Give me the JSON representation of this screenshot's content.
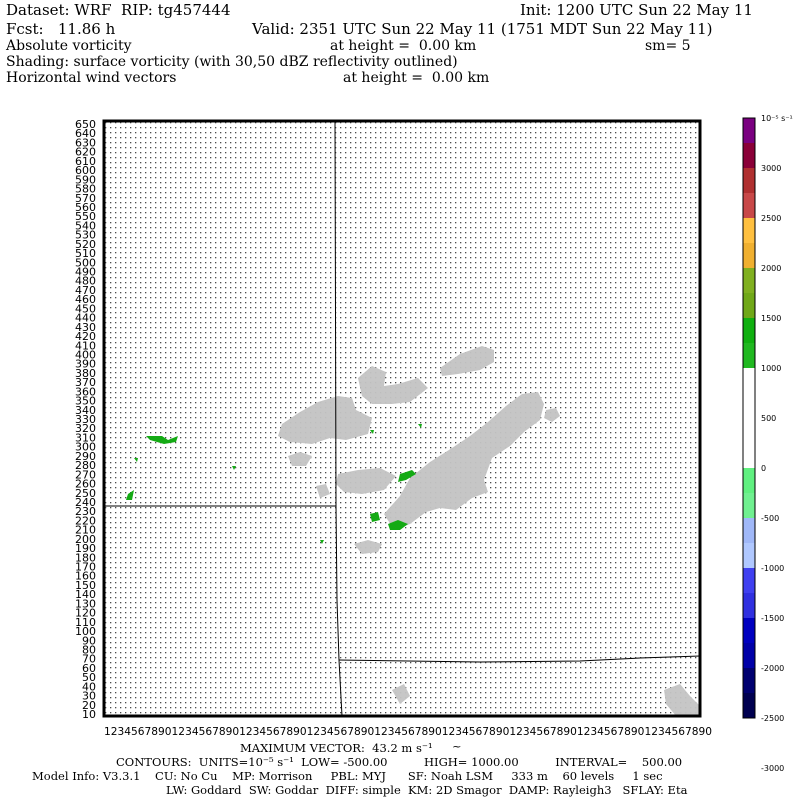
{
  "header": {
    "dataset": "Dataset: WRF  RIP: tg457444",
    "init": "Init: 1200 UTC Sun 22 May 11",
    "fcst": "Fcst:   11.86 h",
    "valid": "Valid: 2351 UTC Sun 22 May 11 (1751 MDT Sun 22 May 11)",
    "field_name": "Absolute vorticity",
    "field_height": "at height =  0.00 km",
    "smoothing": "sm= 5",
    "shading": "Shading: surface vorticity (with 30,50 dBZ reflectivity outlined)",
    "vector_name": "Horizontal wind vectors",
    "vector_height": "at height =  0.00 km"
  },
  "y_axis_ticks": [
    "650",
    "640",
    "630",
    "620",
    "610",
    "600",
    "590",
    "580",
    "570",
    "560",
    "550",
    "540",
    "530",
    "520",
    "510",
    "500",
    "490",
    "480",
    "470",
    "460",
    "450",
    "440",
    "430",
    "420",
    "410",
    "400",
    "390",
    "380",
    "370",
    "360",
    "350",
    "340",
    "330",
    "320",
    "310",
    "300",
    "290",
    "280",
    "270",
    "260",
    "250",
    "240",
    "230",
    "220",
    "210",
    "200",
    "190",
    "180",
    "170",
    "160",
    "150",
    "140",
    "130",
    "120",
    "110",
    "100",
    "90",
    "80",
    "70",
    "60",
    "50",
    "40",
    "30",
    "20",
    "10"
  ],
  "x_axis_label_text": "123456789012345678901234567890123456789012345678901234567890123456789012345678901234567890",
  "colorbar": {
    "unit": "10⁻⁵ s⁻¹",
    "bands": [
      {
        "color": "#7a0080"
      },
      {
        "color": "#8a0038"
      },
      {
        "color": "#b03030"
      },
      {
        "color": "#c84848"
      },
      {
        "color": "#ffc040"
      },
      {
        "color": "#f0b030"
      },
      {
        "color": "#80b020"
      },
      {
        "color": "#70a818"
      },
      {
        "color": "#10b010"
      },
      {
        "color": "#20b820"
      },
      {
        "color": "#ffffff"
      },
      {
        "color": "#ffffff"
      },
      {
        "color": "#ffffff"
      },
      {
        "color": "#ffffff"
      },
      {
        "color": "#60f080"
      },
      {
        "color": "#70f090"
      },
      {
        "color": "#a0b8f8"
      },
      {
        "color": "#b0c8ff"
      },
      {
        "color": "#4040f0"
      },
      {
        "color": "#3030e0"
      },
      {
        "color": "#0000c0"
      },
      {
        "color": "#0000a8"
      },
      {
        "color": "#000070"
      },
      {
        "color": "#000050"
      }
    ],
    "labels": [
      "3000",
      "2500",
      "2000",
      "1500",
      "1000",
      "500",
      "0",
      "-500",
      "-1000",
      "-1500",
      "-2000",
      "-2500",
      "-3000"
    ]
  },
  "footer": {
    "max_vector": "MAXIMUM VECTOR:  43.2 m s⁻¹",
    "contours": "CONTOURS:  UNITS=10⁻⁵ s⁻¹  LOW= -500.00          HIGH= 1000.00          INTERVAL=    500.00",
    "model_info": "Model Info: V3.3.1    CU: No Cu    MP: Morrison     PBL: MYJ      SF: Noah LSM     333 m    60 levels     1 sec",
    "physics": "LW: Goddard  SW: Goddar  DIFF: simple  KM: 2D Smagor  DAMP: Rayleigh3   SFLAY: Eta"
  },
  "map_colors": {
    "reflectivity_shade": "#c8c8c8",
    "vorticity_green": "#10b010",
    "vector_dots": "#404040"
  }
}
